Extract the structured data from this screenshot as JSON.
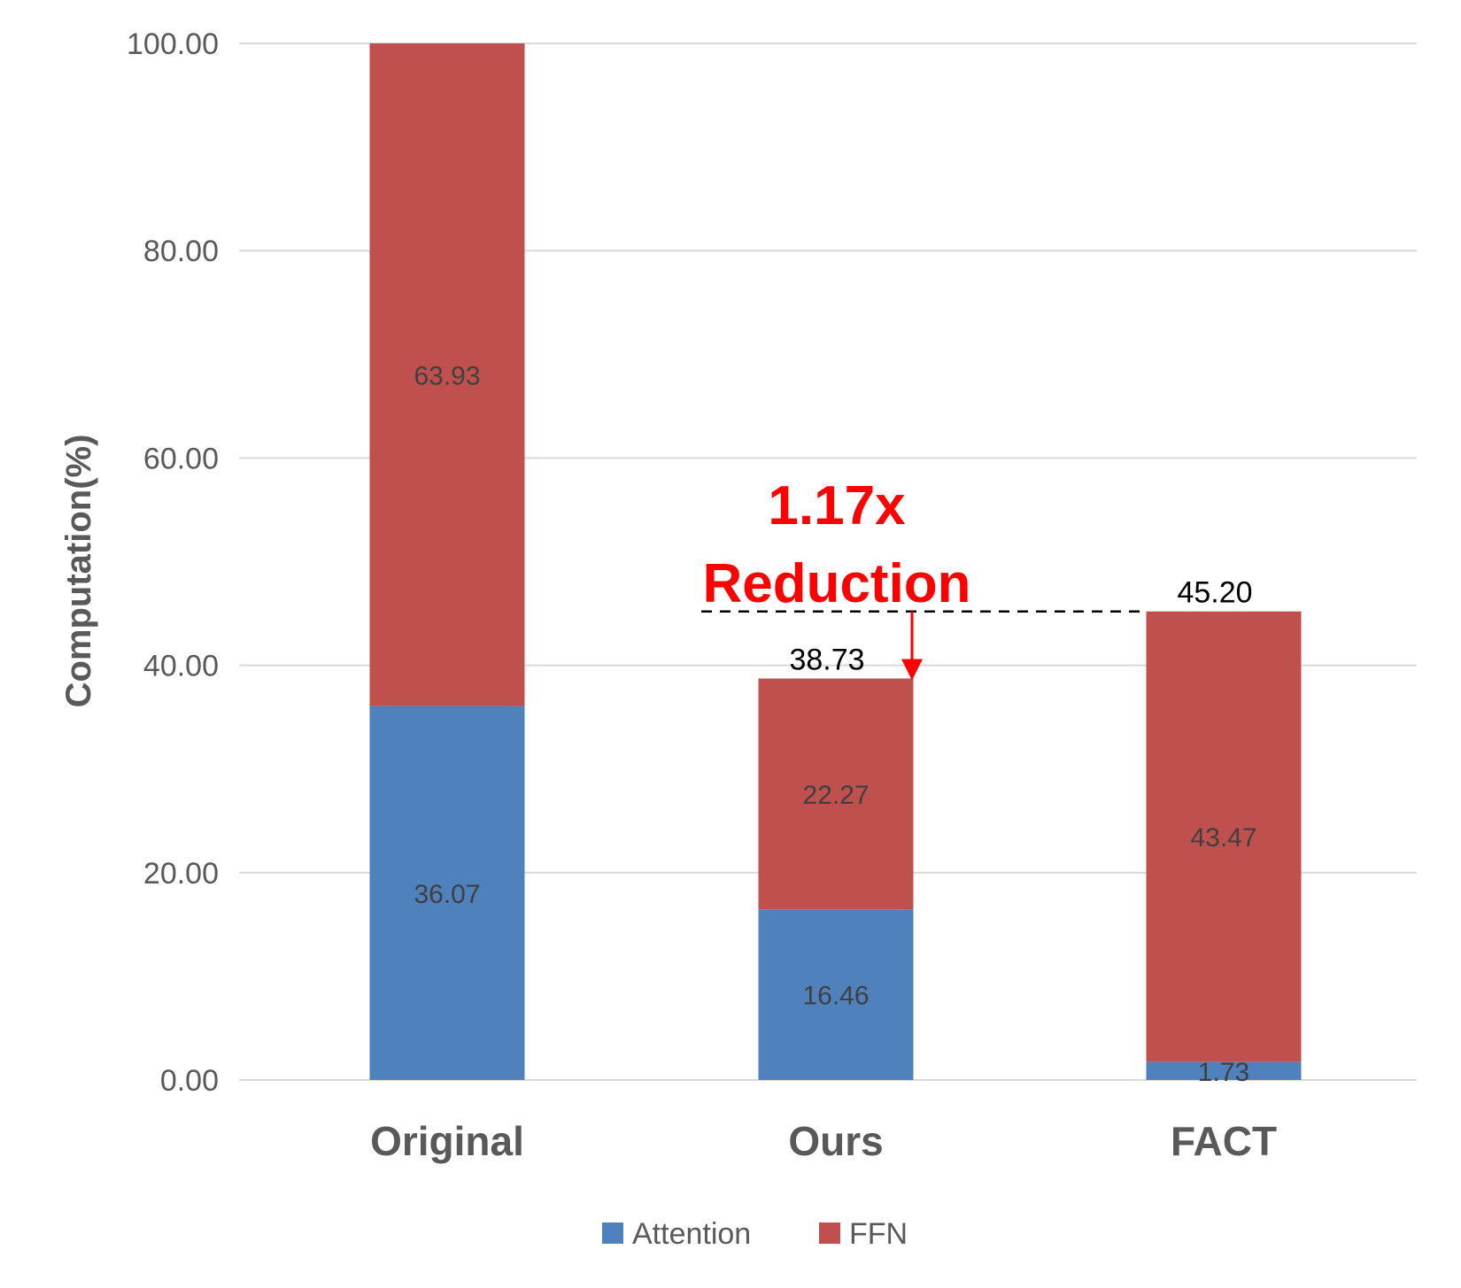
{
  "chart_data": {
    "type": "bar",
    "stacked": true,
    "categories": [
      "Original",
      "Ours",
      "FACT"
    ],
    "series": [
      {
        "name": "Attention",
        "values": [
          36.07,
          16.46,
          1.73
        ],
        "color": "#4f81bd"
      },
      {
        "name": "FFN",
        "values": [
          63.93,
          22.27,
          43.47
        ],
        "color": "#c0504d"
      }
    ],
    "totals": [
      null,
      "38.73",
      "45.20"
    ],
    "series_label_text": {
      "Attention": [
        "36.07",
        "16.46",
        "1.73"
      ],
      "FFN": [
        "63.93",
        "22.27",
        "43.47"
      ]
    },
    "ylabel": "Computation(%)",
    "xlabel": "",
    "ylim": [
      0,
      100
    ],
    "yticks": [
      "0.00",
      "20.00",
      "40.00",
      "60.00",
      "80.00",
      "100.00"
    ],
    "grid": true,
    "legend_position": "bottom",
    "annotation": {
      "line1": "1.17x",
      "line2": "Reduction",
      "color": "#ff0000",
      "from_value": 45.2,
      "to_value": 38.73
    }
  }
}
